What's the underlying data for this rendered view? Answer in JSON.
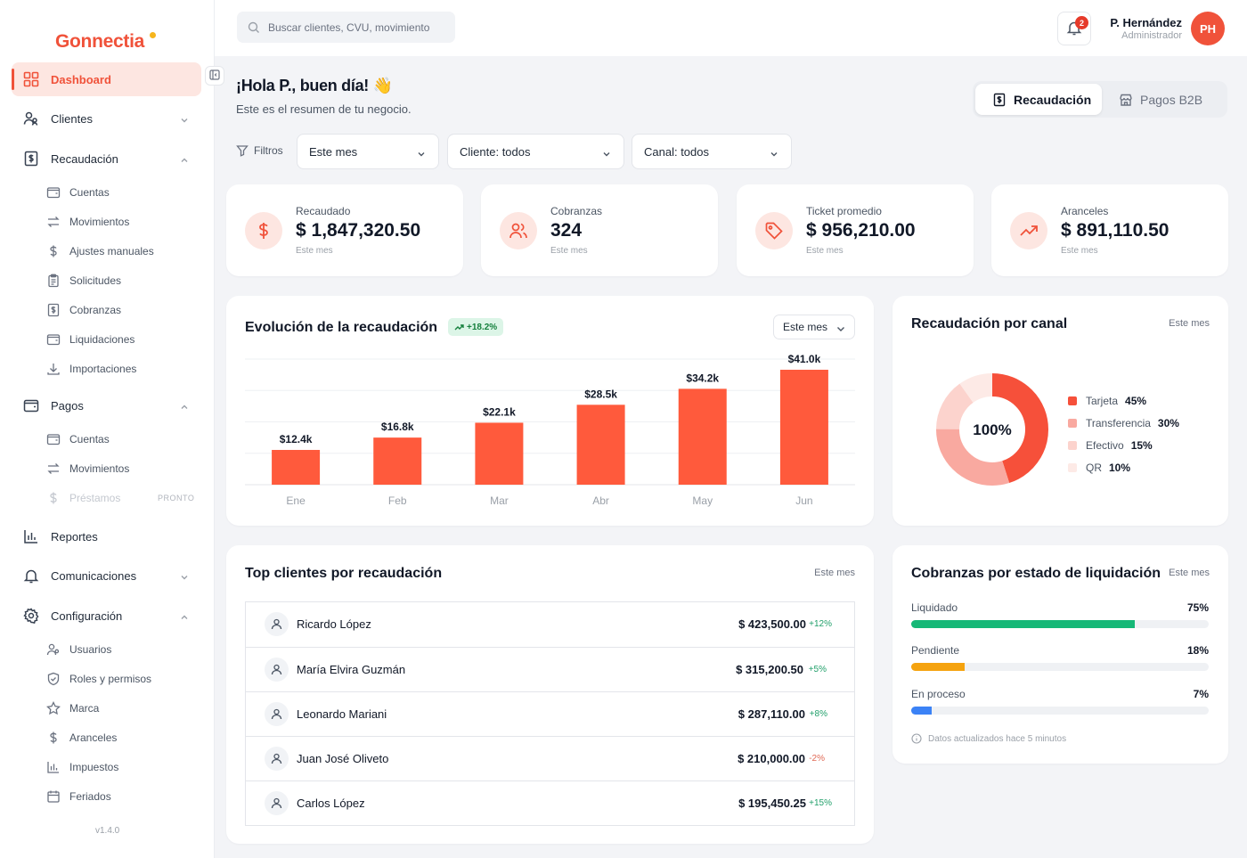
{
  "brand": {
    "logo_text": "Gonnectia",
    "logo_dot_color": "#f6b51c",
    "accent_color": "#f0523a"
  },
  "sidebar": {
    "items": [
      {
        "label": "Dashboard",
        "icon": "grid-icon",
        "active": true
      },
      {
        "label": "Clientes",
        "icon": "users-icon"
      },
      {
        "label": "Recaudación",
        "icon": "receipt-icon"
      },
      {
        "label": "Pagos",
        "icon": "wallet-icon"
      },
      {
        "label": "Reportes",
        "icon": "bar-chart-icon"
      },
      {
        "label": "Comunicaciones",
        "icon": "bell-icon"
      },
      {
        "label": "Configuración",
        "icon": "gear-icon"
      }
    ],
    "recaudacion_sub": [
      {
        "label": "Cuentas",
        "icon": "wallet-icon"
      },
      {
        "label": "Movimientos",
        "icon": "arrows-icon"
      },
      {
        "label": "Ajustes manuales",
        "icon": "dollar-icon"
      },
      {
        "label": "Solicitudes",
        "icon": "clipboard-icon"
      },
      {
        "label": "Cobranzas",
        "icon": "receipt-icon"
      },
      {
        "label": "Liquidaciones",
        "icon": "wallet-icon"
      },
      {
        "label": "Importaciones",
        "icon": "download-icon"
      }
    ],
    "pagos_sub": [
      {
        "label": "Cuentas",
        "icon": "wallet-icon"
      },
      {
        "label": "Movimientos",
        "icon": "arrows-icon"
      },
      {
        "label": "Préstamos",
        "icon": "dollar-icon",
        "disabled": true,
        "tag": "PRONTO"
      }
    ],
    "config_sub": [
      {
        "label": "Usuarios",
        "icon": "users-icon"
      },
      {
        "label": "Roles y permisos",
        "icon": "shield-icon"
      },
      {
        "label": "Marca",
        "icon": "star-icon"
      },
      {
        "label": "Aranceles",
        "icon": "dollar-icon"
      },
      {
        "label": "Impuestos",
        "icon": "bar-chart-icon"
      },
      {
        "label": "Feriados",
        "icon": "calendar-icon"
      }
    ],
    "version": "v1.4.0"
  },
  "topbar": {
    "search_placeholder": "Buscar clientes, CVU, movimiento",
    "notifications_count": "2",
    "user_name": "P. Hernández",
    "user_role": "Administrador",
    "user_initials": "PH"
  },
  "header": {
    "greeting": "¡Hola P., buen día! 👋",
    "subtitle": "Este es el resumen de tu negocio.",
    "tabs": [
      {
        "label": "Recaudación",
        "active": true
      },
      {
        "label": "Pagos B2B",
        "active": false
      }
    ]
  },
  "filters": {
    "label": "Filtros",
    "period": "Este mes",
    "client": "Cliente: todos",
    "channel": "Canal: todos"
  },
  "kpis": [
    {
      "label": "Recaudado",
      "value": "$ 1,847,320.50",
      "sub": "Este mes",
      "icon": "dollar-icon"
    },
    {
      "label": "Cobranzas",
      "value": "324",
      "sub": "Este mes",
      "icon": "users-icon"
    },
    {
      "label": "Ticket promedio",
      "value": "$ 956,210.00",
      "sub": "Este mes",
      "icon": "tag-icon"
    },
    {
      "label": "Aranceles",
      "value": "$ 891,110.50",
      "sub": "Este mes",
      "icon": "trending-up-icon"
    }
  ],
  "evolution": {
    "title": "Evolución de la recaudación",
    "delta": "+18.2%",
    "period": "Este mes"
  },
  "chart_data": [
    {
      "type": "bar",
      "categories": [
        "Ene",
        "Feb",
        "Mar",
        "Abr",
        "May",
        "Jun"
      ],
      "values": [
        12.4,
        16.8,
        22.1,
        28.5,
        34.2,
        41.0
      ],
      "value_labels": [
        "$12.4k",
        "$16.8k",
        "$22.1k",
        "$28.5k",
        "$34.2k",
        "$41.0k"
      ],
      "ylim": [
        0,
        41.0
      ],
      "bar_color": "#ff5a3c",
      "grid": true
    },
    {
      "type": "pie",
      "categories": [
        "Tarjeta",
        "Transferencia",
        "Efectivo",
        "QR"
      ],
      "values": [
        45,
        30,
        15,
        10
      ],
      "value_labels": [
        "45%",
        "30%",
        "15%",
        "10%"
      ],
      "colors": [
        "#f6503a",
        "#f9a9a0",
        "#fcd3cd",
        "#fdeae6"
      ],
      "center_label": "100%",
      "legend": "right"
    }
  ],
  "channel": {
    "title": "Recaudación por canal",
    "period": "Este mes"
  },
  "top_clients": {
    "title": "Top clientes por recaudación",
    "period": "Este mes",
    "rows": [
      {
        "name": "Ricardo López",
        "amount": "$ 423,500.00",
        "delta": "+12%",
        "trend": "up"
      },
      {
        "name": "María Elvira Guzmán",
        "amount": "$ 315,200.50",
        "delta": "+5%",
        "trend": "up"
      },
      {
        "name": "Leonardo Mariani",
        "amount": "$ 287,110.00",
        "delta": "+8%",
        "trend": "up"
      },
      {
        "name": "Juan José Oliveto",
        "amount": "$ 210,000.00",
        "delta": "-2%",
        "trend": "down"
      },
      {
        "name": "Carlos López",
        "amount": "$ 195,450.25",
        "delta": "+15%",
        "trend": "up"
      }
    ]
  },
  "liquidation": {
    "title": "Cobranzas por estado de liquidación",
    "period": "Este mes",
    "rows": [
      {
        "label": "Liquidado",
        "pct": "75%",
        "value": 0.75,
        "color": "#16b877"
      },
      {
        "label": "Pendiente",
        "pct": "18%",
        "value": 0.18,
        "color": "#f5a30f"
      },
      {
        "label": "En proceso",
        "pct": "7%",
        "value": 0.07,
        "color": "#3b82f6"
      }
    ],
    "footnote": "Datos actualizados hace 5 minutos"
  }
}
